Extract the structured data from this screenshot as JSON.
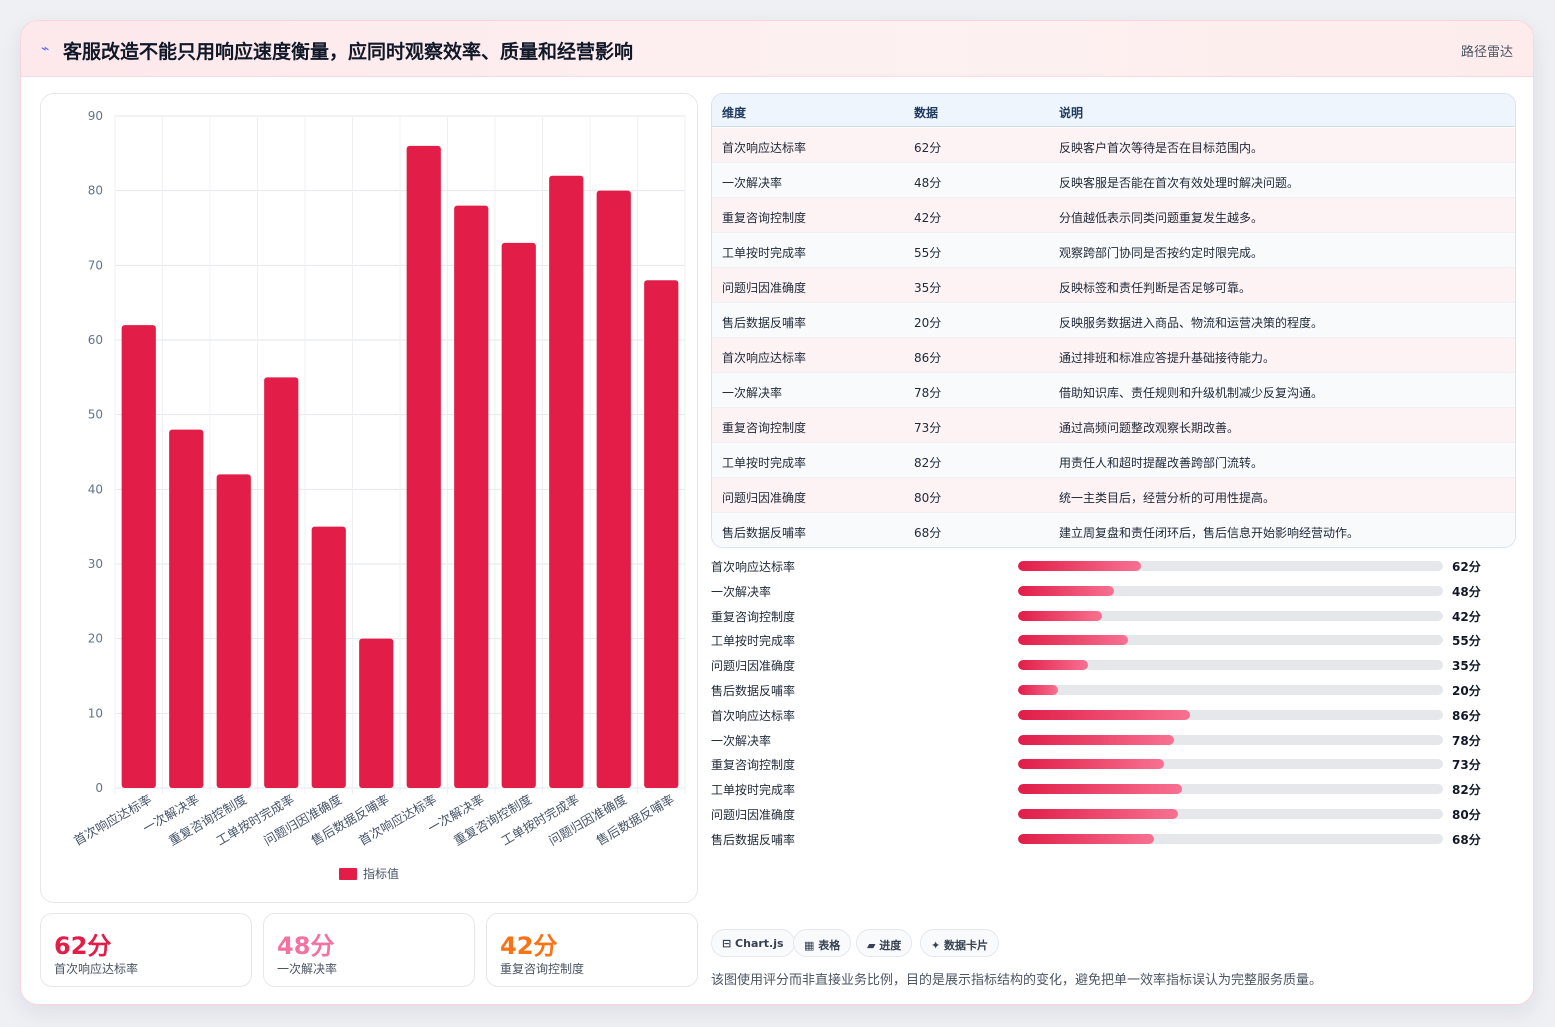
{
  "header": {
    "logo_icon": "sparkle-icon",
    "title": "客服改造不能只用响应速度衡量，应同时观察效率、质量和经营影响",
    "tag": "路径雷达"
  },
  "chart_data": {
    "type": "bar",
    "categories": [
      "首次响应达标率",
      "一次解决率",
      "重复咨询控制度",
      "工单按时完成率",
      "问题归因准确度",
      "售后数据反哺率",
      "首次响应达标率",
      "一次解决率",
      "重复咨询控制度",
      "工单按时完成率",
      "问题归因准确度",
      "售后数据反哺率"
    ],
    "series": [
      {
        "name": "指标值",
        "values": [
          62,
          48,
          42,
          55,
          35,
          20,
          86,
          78,
          73,
          82,
          80,
          68
        ],
        "color": "#e11d48"
      }
    ],
    "ylim": [
      0,
      90
    ],
    "yticks": [
      0,
      10,
      20,
      30,
      40,
      50,
      60,
      70,
      80,
      90
    ],
    "grid": true,
    "legend": "bottom"
  },
  "kpis": [
    {
      "value": "62分",
      "label": "首次响应达标率",
      "color": "#e11d48"
    },
    {
      "value": "48分",
      "label": "一次解决率",
      "color": "#f472a0"
    },
    {
      "value": "42分",
      "label": "重复咨询控制度",
      "color": "#f97316"
    }
  ],
  "table": {
    "headers": [
      "维度",
      "数据",
      "说明"
    ],
    "rows": [
      [
        "首次响应达标率",
        "62分",
        "反映客户首次等待是否在目标范围内。"
      ],
      [
        "一次解决率",
        "48分",
        "反映客服是否能在首次有效处理时解决问题。"
      ],
      [
        "重复咨询控制度",
        "42分",
        "分值越低表示同类问题重复发生越多。"
      ],
      [
        "工单按时完成率",
        "55分",
        "观察跨部门协同是否按约定时限完成。"
      ],
      [
        "问题归因准确度",
        "35分",
        "反映标签和责任判断是否足够可靠。"
      ],
      [
        "售后数据反哺率",
        "20分",
        "反映服务数据进入商品、物流和运营决策的程度。"
      ],
      [
        "首次响应达标率",
        "86分",
        "通过排班和标准应答提升基础接待能力。"
      ],
      [
        "一次解决率",
        "78分",
        "借助知识库、责任规则和升级机制减少反复沟通。"
      ],
      [
        "重复咨询控制度",
        "73分",
        "通过高频问题整改观察长期改善。"
      ],
      [
        "工单按时完成率",
        "82分",
        "用责任人和超时提醒改善跨部门流转。"
      ],
      [
        "问题归因准确度",
        "80分",
        "统一主类目后，经营分析的可用性提高。"
      ],
      [
        "售后数据反哺率",
        "68分",
        "建立周复盘和责任闭环后，售后信息开始影响经营动作。"
      ]
    ]
  },
  "progress": [
    {
      "label": "首次响应达标率",
      "value": "62分",
      "fraction": 0.29
    },
    {
      "label": "一次解决率",
      "value": "48分",
      "fraction": 0.225
    },
    {
      "label": "重复咨询控制度",
      "value": "42分",
      "fraction": 0.197
    },
    {
      "label": "工单按时完成率",
      "value": "55分",
      "fraction": 0.258
    },
    {
      "label": "问题归因准确度",
      "value": "35分",
      "fraction": 0.165
    },
    {
      "label": "售后数据反哺率",
      "value": "20分",
      "fraction": 0.094
    },
    {
      "label": "首次响应达标率",
      "value": "86分",
      "fraction": 0.404
    },
    {
      "label": "一次解决率",
      "value": "78分",
      "fraction": 0.366
    },
    {
      "label": "重复咨询控制度",
      "value": "73分",
      "fraction": 0.343
    },
    {
      "label": "工单按时完成率",
      "value": "82分",
      "fraction": 0.385
    },
    {
      "label": "问题归因准确度",
      "value": "80分",
      "fraction": 0.376
    },
    {
      "label": "售后数据反哺率",
      "value": "68分",
      "fraction": 0.32
    }
  ],
  "pills": [
    {
      "label": "⊟ Chart.js",
      "icon": "chart-icon"
    },
    {
      "label": "▦ 表格",
      "icon": "table-icon"
    },
    {
      "label": "▰ 进度",
      "icon": "progress-icon"
    },
    {
      "label": "✦ 数据卡片",
      "icon": "card-icon"
    }
  ],
  "footnote": "该图使用评分而非直接业务比例，目的是展示指标结构的变化，避免把单一效率指标误认为完整服务质量。"
}
